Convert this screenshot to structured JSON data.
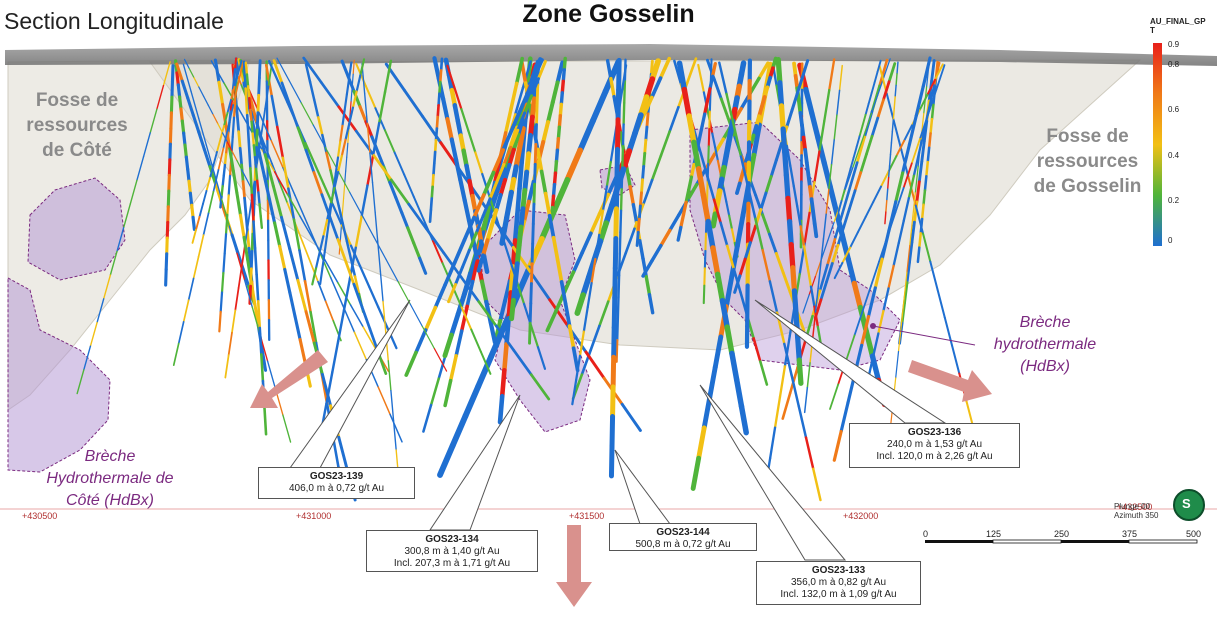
{
  "section_title": "Section Longitudinale",
  "title": "Zone Gosselin",
  "pits": {
    "cote": [
      "Fosse de",
      "ressources",
      "de Côté"
    ],
    "gosselin": [
      "Fosse de",
      "ressources",
      "de Gosselin"
    ]
  },
  "breccias": {
    "cote": [
      "Brèche",
      "Hydrothermale de",
      "Côté (HdBx)"
    ],
    "main": [
      "Brèche",
      "hydrothermale",
      "(HdBx)"
    ]
  },
  "colorbar": {
    "title_line1": "AU_FINAL_GP",
    "title_line2": "T",
    "ticks": [
      "0.9",
      "0.8",
      "0.6",
      "0.4",
      "0.2",
      "0"
    ],
    "colors": [
      "#e8201a",
      "#f07a18",
      "#f2c014",
      "#4fb43a",
      "#1f6fd1"
    ]
  },
  "coordinates": [
    "+430500",
    "+431000",
    "+431500",
    "+432000",
    "+432500"
  ],
  "orientation": {
    "plunge": "Plunge 00",
    "azimuth": "Azimuth 350",
    "compass": "S"
  },
  "scale_bar": {
    "labels": [
      "0",
      "125",
      "250",
      "375",
      "500"
    ]
  },
  "callouts": {
    "gos23_139": {
      "hole": "GOS23-139",
      "lines": [
        "406,0 m à 0,72 g/t Au"
      ]
    },
    "gos23_134": {
      "hole": "GOS23-134",
      "lines": [
        "300,8 m à 1,40 g/t Au",
        "Incl. 207,3 m à 1,71 g/t Au"
      ]
    },
    "gos23_144": {
      "hole": "GOS23-144",
      "lines": [
        "500,8 m à 0,72 g/t Au"
      ]
    },
    "gos23_133": {
      "hole": "GOS23-133",
      "lines": [
        "356,0 m à 0,82 g/t Au",
        "Incl. 132,0 m à 1,09 g/t Au"
      ]
    },
    "gos23_136": {
      "hole": "GOS23-136",
      "lines": [
        "240,0 m à 1,53 g/t Au",
        "Incl. 120,0 m à 2,26 g/t Au"
      ]
    }
  }
}
